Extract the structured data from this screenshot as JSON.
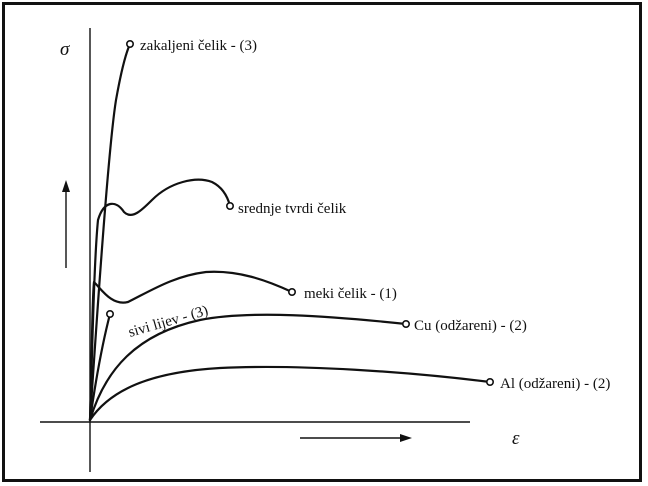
{
  "diagram": {
    "y_axis_symbol": "σ",
    "x_axis_symbol": "ε",
    "curves": [
      {
        "id": "zakaljeni",
        "label": "zakaljeni čelik - (3)"
      },
      {
        "id": "srednje",
        "label": "srednje tvrdi čelik"
      },
      {
        "id": "meki",
        "label": "meki čelik - (1)"
      },
      {
        "id": "sivi",
        "label": "sivi lijev - (3)"
      },
      {
        "id": "cu",
        "label": "Cu (odžareni) - (2)"
      },
      {
        "id": "al",
        "label": "Al (odžareni) - (2)"
      }
    ]
  }
}
